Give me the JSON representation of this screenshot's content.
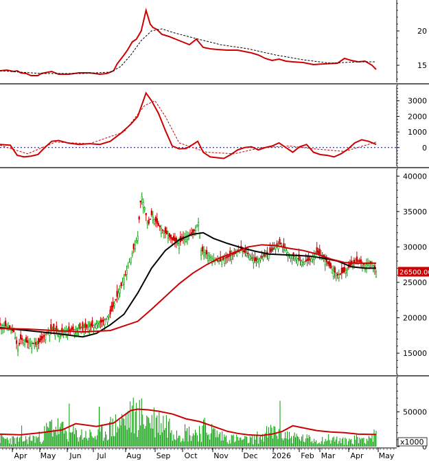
{
  "chart_data": [
    {
      "type": "line",
      "panel": "indicator-top",
      "ylim": [
        12.5,
        24.5
      ],
      "yticks": [
        15,
        20
      ],
      "series": [
        {
          "color": "#cc0000",
          "x": [
            0,
            10,
            20,
            25,
            30,
            38,
            45,
            55,
            60,
            75,
            85,
            100,
            115,
            130,
            145,
            155,
            165,
            170,
            180,
            185,
            192,
            198,
            205,
            212,
            218,
            222,
            228,
            235,
            245,
            255,
            265,
            275,
            285,
            295,
            305,
            315,
            330,
            345,
            355,
            365,
            375,
            385,
            395,
            405,
            415,
            425,
            440,
            455,
            470,
            490,
            500,
            510,
            520,
            530,
            540,
            546
          ],
          "values": [
            14.2,
            14.3,
            14.1,
            14.2,
            13.9,
            13.8,
            13.5,
            13.5,
            13.8,
            14.1,
            13.7,
            13.7,
            13.9,
            13.9,
            13.7,
            13.8,
            14.2,
            15.2,
            16.5,
            17.2,
            18.4,
            18.8,
            20.0,
            23.0,
            21.0,
            20.5,
            20.2,
            19.5,
            19.2,
            18.8,
            18.4,
            18.0,
            18.8,
            17.6,
            17.4,
            17.3,
            17.2,
            17.2,
            17.0,
            16.8,
            16.5,
            16.0,
            15.7,
            15.9,
            15.6,
            15.5,
            15.4,
            15.1,
            15.2,
            15.3,
            16.0,
            15.7,
            15.5,
            15.6,
            15.0,
            14.4
          ]
        },
        {
          "color": "#000000",
          "dashed": true,
          "x": [
            0,
            60,
            120,
            160,
            175,
            190,
            205,
            220,
            235,
            250,
            280,
            320,
            360,
            400,
            440,
            480,
            520,
            546
          ],
          "values": [
            14.2,
            13.8,
            13.8,
            14.0,
            14.8,
            16.5,
            18.6,
            20.0,
            20.3,
            19.8,
            19.0,
            18.0,
            17.4,
            16.5,
            15.8,
            15.3,
            15.5,
            15.5
          ]
        }
      ],
      "value_labels": []
    },
    {
      "type": "line",
      "panel": "oscillator",
      "ylim": [
        -1200,
        4000
      ],
      "yticks": [
        3000,
        2000,
        1000,
        0
      ],
      "zero_line": true,
      "series": [
        {
          "color": "#cc0000",
          "x": [
            0,
            15,
            25,
            35,
            45,
            55,
            65,
            75,
            85,
            100,
            115,
            130,
            145,
            160,
            175,
            190,
            200,
            212,
            220,
            230,
            240,
            250,
            260,
            270,
            280,
            287,
            295,
            305,
            315,
            325,
            335,
            345,
            355,
            365,
            375,
            385,
            395,
            405,
            415,
            425,
            435,
            445,
            455,
            465,
            475,
            485,
            495,
            505,
            515,
            525,
            535,
            546
          ],
          "values": [
            200,
            150,
            -500,
            -600,
            -550,
            -450,
            0,
            400,
            450,
            280,
            200,
            250,
            200,
            400,
            900,
            1500,
            2000,
            3500,
            3000,
            2200,
            1100,
            100,
            -80,
            -60,
            200,
            400,
            -300,
            -600,
            -650,
            -700,
            -450,
            -150,
            0,
            50,
            -150,
            0,
            100,
            300,
            0,
            -300,
            50,
            200,
            -300,
            -450,
            -500,
            -600,
            -400,
            -100,
            300,
            500,
            400,
            200
          ]
        },
        {
          "color": "#cc0000",
          "dashed": true,
          "x": [
            0,
            40,
            80,
            130,
            180,
            210,
            225,
            240,
            260,
            300,
            340,
            380,
            420,
            460,
            500,
            546
          ],
          "values": [
            150,
            -400,
            350,
            250,
            1000,
            2700,
            3000,
            2000,
            300,
            -300,
            -400,
            0,
            100,
            -100,
            -250,
            350
          ]
        }
      ],
      "value_labels": []
    },
    {
      "type": "candlestick",
      "panel": "price",
      "ylim": [
        12000,
        41000
      ],
      "yticks": [
        40000,
        35000,
        30000,
        25000,
        20000,
        15000
      ],
      "price_tag": "26500.00",
      "price_tag_value": 26500,
      "series": [
        {
          "kind": "close-trend",
          "x": [
            0,
            10,
            20,
            26,
            30,
            40,
            55,
            65,
            75,
            85,
            100,
            115,
            130,
            150,
            160,
            170,
            180,
            190,
            200,
            205,
            210,
            215,
            220,
            230,
            240,
            250,
            260,
            270,
            280,
            288,
            292,
            300,
            310,
            320,
            330,
            340,
            350,
            360,
            370,
            380,
            390,
            400,
            408,
            420,
            430,
            440,
            450,
            460,
            470,
            480,
            490,
            500,
            510,
            520,
            530,
            540,
            546
          ],
          "values": [
            19000,
            18800,
            18000,
            15500,
            17000,
            16500,
            16200,
            17500,
            18500,
            18000,
            18200,
            18500,
            18700,
            19500,
            20500,
            23000,
            25500,
            28500,
            31500,
            37500,
            35500,
            33000,
            34500,
            33000,
            32000,
            31000,
            30500,
            31500,
            32000,
            33500,
            29500,
            29000,
            28200,
            28000,
            28500,
            29000,
            29500,
            29000,
            28000,
            28500,
            29000,
            30000,
            30500,
            29000,
            28500,
            27800,
            28200,
            29200,
            28500,
            27000,
            26000,
            26500,
            27500,
            28000,
            27500,
            27800,
            26500
          ]
        },
        {
          "kind": "moving-average",
          "color": "#000000",
          "x": [
            0,
            40,
            80,
            120,
            140,
            160,
            180,
            200,
            220,
            240,
            260,
            280,
            295,
            310,
            330,
            350,
            370,
            390,
            410,
            430,
            450,
            470,
            490,
            510,
            530,
            546
          ],
          "values": [
            18600,
            18200,
            17800,
            17300,
            17800,
            19000,
            20500,
            23500,
            27000,
            29500,
            31000,
            31800,
            32000,
            31200,
            30500,
            29900,
            29400,
            29000,
            28900,
            28800,
            28700,
            28400,
            28000,
            27200,
            27000,
            27000
          ]
        },
        {
          "kind": "moving-average",
          "color": "#cc0000",
          "x": [
            0,
            40,
            80,
            120,
            160,
            200,
            220,
            240,
            260,
            280,
            300,
            320,
            340,
            360,
            380,
            400,
            420,
            440,
            460,
            480,
            500,
            520,
            546
          ],
          "values": [
            18500,
            18400,
            18200,
            18000,
            18200,
            19500,
            21200,
            23000,
            24800,
            26300,
            27500,
            28500,
            29200,
            30000,
            30300,
            30200,
            29800,
            29500,
            29000,
            28300,
            27800,
            27700,
            27700
          ]
        }
      ],
      "value_labels": []
    },
    {
      "type": "bar",
      "panel": "volume",
      "ylim": [
        0,
        100000
      ],
      "yticks": [
        50000,
        0
      ],
      "unit_label": "x1000",
      "xticks": [
        "Apr",
        "May",
        "Jun",
        "Jul",
        "Aug",
        "Sep",
        "Oct",
        "Nov",
        "Dec",
        "2026",
        "Feb",
        "Mar",
        "Apr",
        "May"
      ],
      "xtick_positions": [
        30,
        70,
        110,
        148,
        195,
        238,
        278,
        322,
        365,
        410,
        448,
        478,
        520,
        563
      ],
      "volume_profile": {
        "x": [
          0,
          30,
          60,
          75,
          100,
          140,
          160,
          190,
          200,
          220,
          240,
          260,
          280,
          300,
          320,
          340,
          360,
          380,
          400,
          420,
          440,
          460,
          480,
          500,
          520,
          546
        ],
        "values": [
          15000,
          12000,
          18000,
          40000,
          25000,
          20000,
          35000,
          55000,
          60000,
          50000,
          45000,
          30000,
          25000,
          35000,
          20000,
          15000,
          12000,
          20000,
          30000,
          20000,
          15000,
          12000,
          15000,
          10000,
          15000,
          20000
        ]
      },
      "series": [
        {
          "kind": "moving-average",
          "color": "#cc0000",
          "x": [
            0,
            30,
            60,
            75,
            90,
            110,
            140,
            165,
            180,
            190,
            200,
            215,
            230,
            250,
            270,
            290,
            310,
            330,
            345,
            360,
            380,
            395,
            410,
            425,
            440,
            460,
            480,
            500,
            520,
            546
          ],
          "values": [
            18000,
            17000,
            20000,
            22000,
            24000,
            33000,
            29000,
            34000,
            45000,
            52000,
            54000,
            53000,
            51000,
            47000,
            40000,
            36000,
            29000,
            22000,
            19000,
            17000,
            16000,
            18000,
            22000,
            30000,
            27000,
            23000,
            21000,
            20000,
            18000,
            17500
          ]
        }
      ],
      "value_labels": []
    }
  ]
}
